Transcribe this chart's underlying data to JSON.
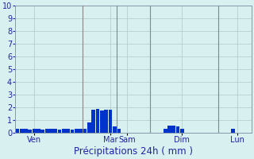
{
  "title": "Précipitations 24h ( mm )",
  "ylim": [
    0,
    10
  ],
  "yticks": [
    0,
    1,
    2,
    3,
    4,
    5,
    6,
    7,
    8,
    9,
    10
  ],
  "background_color": "#d8f0f0",
  "bar_color": "#0033cc",
  "grid_color": "#b0c8c8",
  "num_bars": 56,
  "bar_values": [
    0.3,
    0.3,
    0.3,
    0.25,
    0.3,
    0.3,
    0.25,
    0.3,
    0.3,
    0.3,
    0.25,
    0.3,
    0.3,
    0.25,
    0.3,
    0.3,
    0.3,
    0.8,
    1.85,
    1.9,
    1.75,
    1.85,
    1.85,
    0.5,
    0.3,
    0.0,
    0.0,
    0.0,
    0.0,
    0.0,
    0.0,
    0.0,
    0.0,
    0.0,
    0.0,
    0.35,
    0.55,
    0.55,
    0.5,
    0.35,
    0.0,
    0.0,
    0.0,
    0.0,
    0.0,
    0.0,
    0.0,
    0.0,
    0.0,
    0.0,
    0.0,
    0.3,
    0.0,
    0.0,
    0.0,
    0.0
  ],
  "day_labels": [
    "Ven",
    "Mar",
    "Sam",
    "Dim",
    "Lun"
  ],
  "day_tick_positions": [
    4,
    22,
    26,
    39,
    52
  ],
  "vline_positions": [
    16,
    24,
    32,
    48
  ],
  "title_color": "#2222aa",
  "tick_color": "#2222aa",
  "title_fontsize": 8.5,
  "ytick_fontsize": 7,
  "xtick_fontsize": 7
}
